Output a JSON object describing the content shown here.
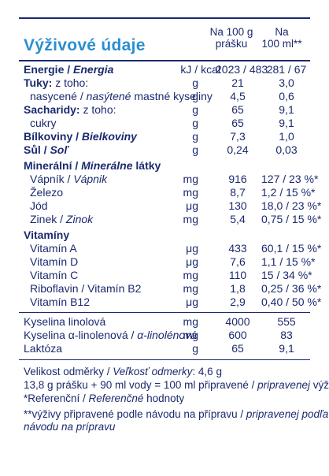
{
  "title": "Výživové údaje",
  "columns": {
    "col1": [
      "Na 100 g",
      "prášku"
    ],
    "col2": [
      "Na",
      "100 ml**"
    ]
  },
  "energy": {
    "label": "Energie",
    "label_sk": "Energia",
    "unit": "kJ / kcal",
    "v1": "2023 / 483",
    "v2": "281 / 67"
  },
  "fats": {
    "label": "Tuky:",
    "suffix": " z toho:",
    "unit": "g",
    "v1": "21",
    "v2": "3,0"
  },
  "saturated": {
    "label": "nasycené / ",
    "label_sk": "nasýtené",
    "suffix": " mastné kyseliny",
    "unit": "g",
    "v1": "4,5",
    "v2": "0,6"
  },
  "carbs": {
    "label": "Sacharidy:",
    "suffix": " z toho:",
    "unit": "g",
    "v1": "65",
    "v2": "9,1"
  },
  "sugars": {
    "label": "cukry",
    "unit": "g",
    "v1": "65",
    "v2": "9,1"
  },
  "protein": {
    "label": "Bílkoviny",
    "label_sk": "Bielkoviny",
    "unit": "g",
    "v1": "7,3",
    "v2": "1,0"
  },
  "salt": {
    "label": "Sůl",
    "label_sk": "Soľ",
    "unit": "g",
    "v1": "0,24",
    "v2": "0,03"
  },
  "minerals_heading": {
    "label": "Minerální",
    "label_sk": "Minerálne",
    "suffix": " látky"
  },
  "calcium": {
    "label": "Vápník / ",
    "label_sk": "Vápnik",
    "unit": "mg",
    "v1": "916",
    "v2": "127 / 23 %*"
  },
  "iron": {
    "label": "Železo",
    "unit": "mg",
    "v1": "8,7",
    "v2": "1,2 / 15 %*"
  },
  "iodine": {
    "label": "Jód",
    "unit": "μg",
    "v1": "130",
    "v2": "18,0 / 23 %*"
  },
  "zinc": {
    "label": "Zinek / ",
    "label_sk": "Zinok",
    "unit": "mg",
    "v1": "5,4",
    "v2": "0,75 / 15 %*"
  },
  "vitamins_heading": "Vitamíny",
  "vit_a": {
    "label": "Vitamín A",
    "unit": "μg",
    "v1": "433",
    "v2": "60,1 / 15 %*"
  },
  "vit_d": {
    "label": "Vitamín D",
    "unit": "μg",
    "v1": "7,6",
    "v2": "1,1 / 15 %*"
  },
  "vit_c": {
    "label": "Vitamín C",
    "unit": "mg",
    "v1": "110",
    "v2": "15 / 34 %*"
  },
  "riboflavin": {
    "label": "Riboflavin / Vitamín B2",
    "unit": "mg",
    "v1": "1,8",
    "v2": "0,25 / 36 %*"
  },
  "vit_b12": {
    "label": "Vitamín B12",
    "unit": "μg",
    "v1": "2,9",
    "v2": "0,40 / 50 %*"
  },
  "linoleic": {
    "label": "Kyselina linolová",
    "unit": "mg",
    "v1": "4000",
    "v2": "555"
  },
  "alpha_linolenic": {
    "label": "Kyselina α-linolenová / ",
    "label_sk": "α-linolénová",
    "unit": "mg",
    "v1": "600",
    "v2": "83"
  },
  "lactose": {
    "label": "Laktóza",
    "unit": "g",
    "v1": "65",
    "v2": "9,1"
  },
  "footnotes": {
    "serving_a": "Velikost odměrky / ",
    "serving_b": "Veľkosť odmerky",
    "serving_c": ": 4,6 g",
    "prep_a": "13,8 g prášku + 90 ml vody = 100 ml připravené / ",
    "prep_b": "pripravenej",
    "prep_c": " výživy",
    "ref_a": "*Referenční / ",
    "ref_b": "Referenčné",
    "ref_c": " hodnoty",
    "prep2_a": "**výživy připravené podle návodu na přípravu / ",
    "prep2_b": "pripravenej podľa",
    "prep2_c": "návodu na prípravu"
  }
}
